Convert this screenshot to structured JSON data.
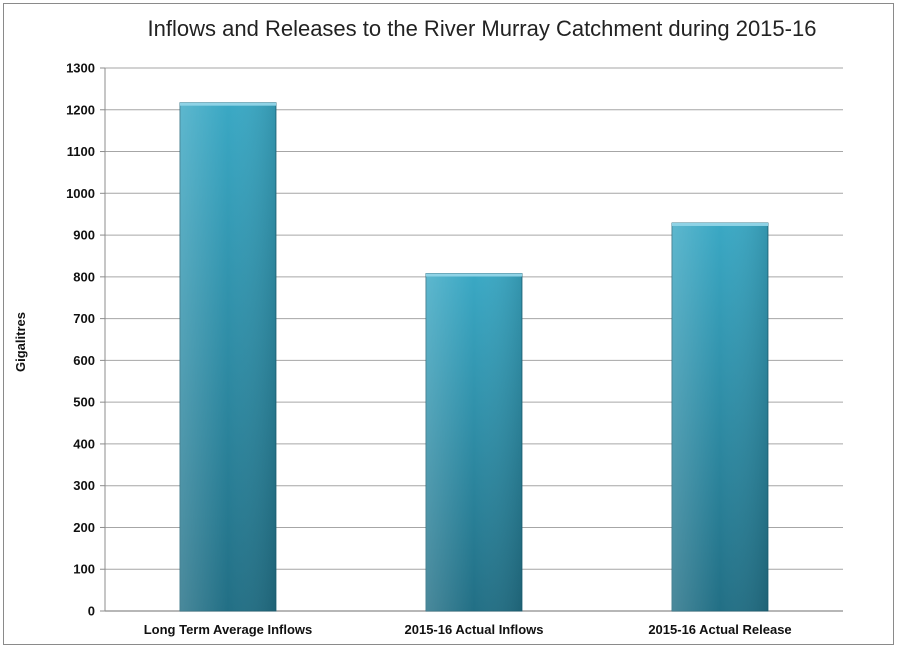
{
  "chart_data": {
    "type": "bar",
    "title": "Inflows and Releases to the River Murray Catchment during 2015-16",
    "xlabel": "",
    "ylabel": "Gigalitres",
    "categories": [
      "Long Term Average Inflows",
      "2015-16 Actual Inflows",
      "2015-16 Actual Release"
    ],
    "values": [
      1217,
      808,
      929
    ],
    "ylim": [
      0,
      1300
    ],
    "yticks": [
      0,
      100,
      200,
      300,
      400,
      500,
      600,
      700,
      800,
      900,
      1000,
      1100,
      1200,
      1300
    ],
    "grid": true,
    "legend": "none",
    "colors": {
      "bar_light": "#3aa3c0",
      "bar_dark": "#1f6f86",
      "grid": "#a6a6a6",
      "axis": "#8c8c8c"
    }
  }
}
